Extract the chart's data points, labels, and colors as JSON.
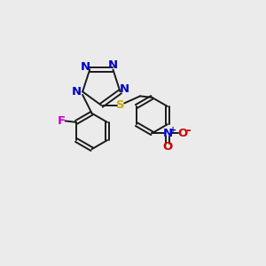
{
  "bg_color": "#ebebeb",
  "bond_color": "#1a1a1a",
  "tetrazole_N_color": "#0000cc",
  "S_color": "#ccaa00",
  "F_color": "#cc00cc",
  "NO2_N_color": "#0000cc",
  "NO2_O_color": "#cc0000",
  "figsize": [
    3.0,
    3.0
  ],
  "dpi": 100,
  "xlim": [
    0,
    10
  ],
  "ylim": [
    0,
    10
  ]
}
